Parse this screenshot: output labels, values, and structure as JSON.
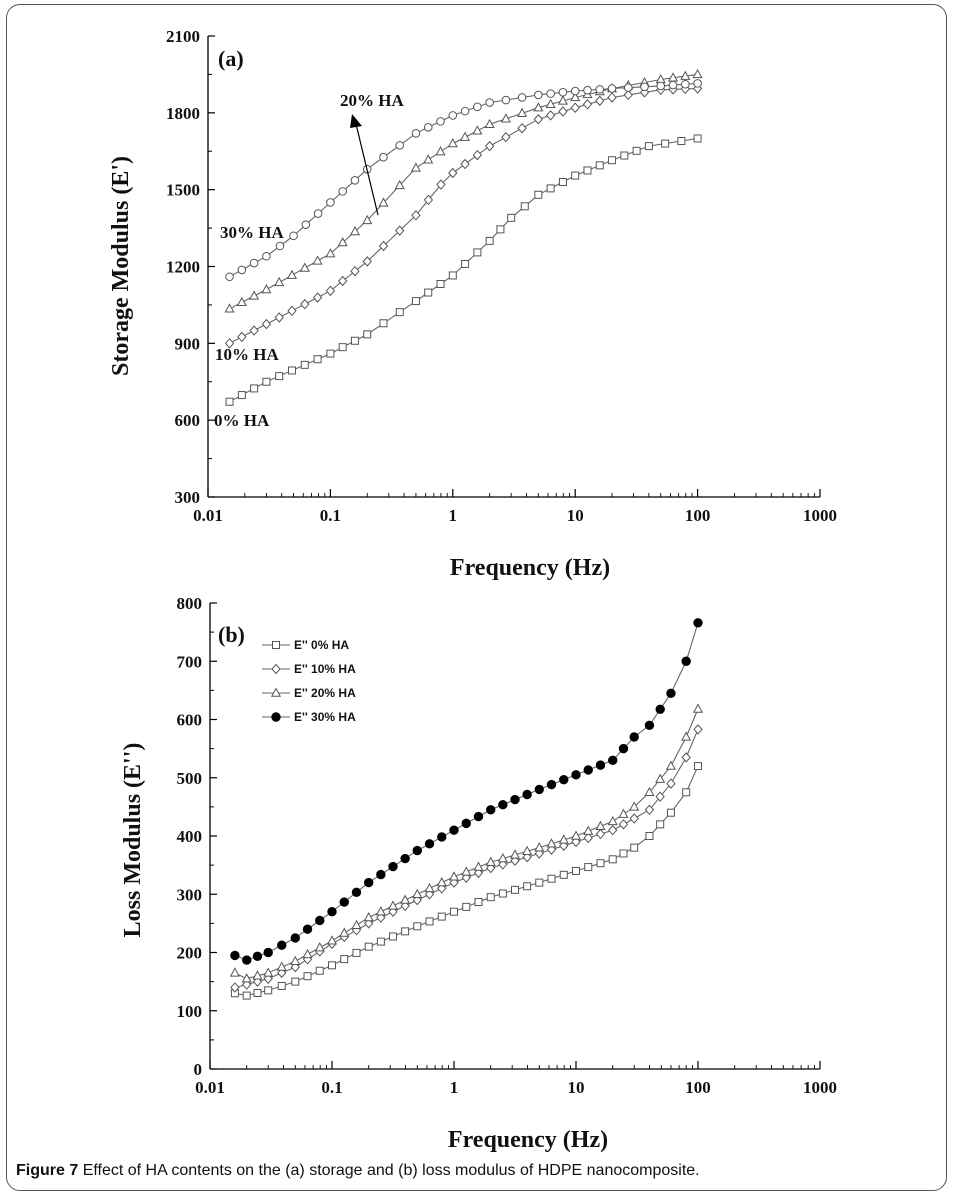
{
  "caption": {
    "label": "Figure 7",
    "text": "Effect of HA contents on the (a) storage and (b) loss modulus of HDPE nanocomposite."
  },
  "chart_data": [
    {
      "type": "line",
      "panel_label": "(a)",
      "xlabel": "Frequency (Hz)",
      "ylabel": "Storage Modulus (E')",
      "xscale": "log",
      "xlim": [
        0.01,
        1000
      ],
      "ylim": [
        300,
        2100
      ],
      "x_ticks": [
        "0.01",
        "0.1",
        "1",
        "10",
        "100",
        "1000"
      ],
      "y_ticks": [
        "300",
        "600",
        "900",
        "1200",
        "1500",
        "1800",
        "2100"
      ],
      "annotations": [
        {
          "text": "30% HA"
        },
        {
          "text": "20% HA",
          "arrow": true
        },
        {
          "text": "10% HA"
        },
        {
          "text": "0% HA"
        }
      ],
      "series": [
        {
          "marker": "square",
          "points": [
            [
              0.015,
              672
            ],
            [
              0.03,
              750
            ],
            [
              0.1,
              860
            ],
            [
              0.2,
              935
            ],
            [
              0.5,
              1065
            ],
            [
              1,
              1165
            ],
            [
              2,
              1300
            ],
            [
              3,
              1390
            ],
            [
              5,
              1480
            ],
            [
              10,
              1555
            ],
            [
              20,
              1615
            ],
            [
              40,
              1670
            ],
            [
              100,
              1700
            ]
          ]
        },
        {
          "marker": "diamond",
          "points": [
            [
              0.015,
              900
            ],
            [
              0.03,
              975
            ],
            [
              0.1,
              1105
            ],
            [
              0.2,
              1220
            ],
            [
              0.5,
              1400
            ],
            [
              0.8,
              1520
            ],
            [
              1,
              1565
            ],
            [
              2,
              1670
            ],
            [
              5,
              1775
            ],
            [
              10,
              1820
            ],
            [
              20,
              1860
            ],
            [
              50,
              1890
            ],
            [
              100,
              1895
            ]
          ]
        },
        {
          "marker": "triangle",
          "points": [
            [
              0.015,
              1035
            ],
            [
              0.03,
              1110
            ],
            [
              0.1,
              1250
            ],
            [
              0.2,
              1380
            ],
            [
              0.5,
              1585
            ],
            [
              1,
              1680
            ],
            [
              2,
              1755
            ],
            [
              5,
              1820
            ],
            [
              10,
              1860
            ],
            [
              20,
              1895
            ],
            [
              50,
              1930
            ],
            [
              100,
              1950
            ]
          ]
        },
        {
          "marker": "circle",
          "points": [
            [
              0.015,
              1160
            ],
            [
              0.03,
              1240
            ],
            [
              0.05,
              1320
            ],
            [
              0.1,
              1450
            ],
            [
              0.2,
              1580
            ],
            [
              0.5,
              1720
            ],
            [
              1,
              1790
            ],
            [
              2,
              1840
            ],
            [
              5,
              1870
            ],
            [
              10,
              1885
            ],
            [
              20,
              1895
            ],
            [
              50,
              1905
            ],
            [
              100,
              1915
            ]
          ]
        }
      ]
    },
    {
      "type": "line",
      "panel_label": "(b)",
      "xlabel": "Frequency (Hz)",
      "ylabel": "Loss Modulus (E'')",
      "xscale": "log",
      "xlim": [
        0.01,
        1000
      ],
      "ylim": [
        0,
        800
      ],
      "x_ticks": [
        "0.01",
        "0.1",
        "1",
        "10",
        "100",
        "1000"
      ],
      "y_ticks": [
        "0",
        "100",
        "200",
        "300",
        "400",
        "500",
        "600",
        "700",
        "800"
      ],
      "legend": "top-left",
      "series": [
        {
          "name": "E'' 0% HA",
          "marker": "square",
          "filled": false,
          "points": [
            [
              0.016,
              130
            ],
            [
              0.02,
              126
            ],
            [
              0.03,
              135
            ],
            [
              0.05,
              150
            ],
            [
              0.1,
              178
            ],
            [
              0.2,
              210
            ],
            [
              0.5,
              245
            ],
            [
              1,
              270
            ],
            [
              2,
              295
            ],
            [
              5,
              320
            ],
            [
              10,
              340
            ],
            [
              20,
              360
            ],
            [
              30,
              380
            ],
            [
              40,
              400
            ],
            [
              60,
              440
            ],
            [
              80,
              475
            ],
            [
              100,
              520
            ]
          ]
        },
        {
          "name": "E'' 10% HA",
          "marker": "diamond",
          "filled": false,
          "points": [
            [
              0.016,
              140
            ],
            [
              0.02,
              145
            ],
            [
              0.03,
              155
            ],
            [
              0.05,
              175
            ],
            [
              0.1,
              215
            ],
            [
              0.2,
              250
            ],
            [
              0.5,
              290
            ],
            [
              1,
              320
            ],
            [
              2,
              345
            ],
            [
              5,
              370
            ],
            [
              10,
              390
            ],
            [
              20,
              410
            ],
            [
              30,
              430
            ],
            [
              40,
              445
            ],
            [
              60,
              490
            ],
            [
              80,
              535
            ],
            [
              100,
              583
            ]
          ]
        },
        {
          "name": "E'' 20% HA",
          "marker": "triangle",
          "filled": false,
          "points": [
            [
              0.016,
              165
            ],
            [
              0.02,
              155
            ],
            [
              0.03,
              165
            ],
            [
              0.05,
              185
            ],
            [
              0.1,
              220
            ],
            [
              0.2,
              260
            ],
            [
              0.5,
              300
            ],
            [
              1,
              330
            ],
            [
              2,
              355
            ],
            [
              5,
              380
            ],
            [
              10,
              400
            ],
            [
              20,
              425
            ],
            [
              30,
              450
            ],
            [
              40,
              475
            ],
            [
              60,
              520
            ],
            [
              80,
              570
            ],
            [
              100,
              618
            ]
          ]
        },
        {
          "name": "E'' 30% HA",
          "marker": "circle",
          "filled": true,
          "points": [
            [
              0.016,
              195
            ],
            [
              0.02,
              187
            ],
            [
              0.03,
              200
            ],
            [
              0.05,
              225
            ],
            [
              0.1,
              270
            ],
            [
              0.2,
              320
            ],
            [
              0.5,
              375
            ],
            [
              1,
              410
            ],
            [
              2,
              445
            ],
            [
              5,
              480
            ],
            [
              10,
              505
            ],
            [
              20,
              530
            ],
            [
              30,
              570
            ],
            [
              40,
              590
            ],
            [
              60,
              645
            ],
            [
              80,
              700
            ],
            [
              100,
              766
            ]
          ]
        }
      ]
    }
  ]
}
